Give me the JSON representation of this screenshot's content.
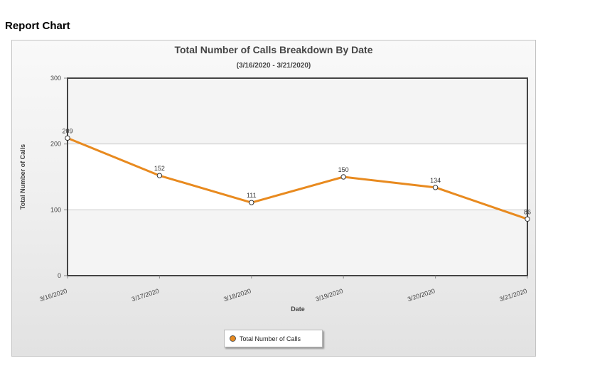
{
  "page": {
    "heading": "Report Chart"
  },
  "colors": {
    "line": "#e88a1f",
    "band": "#f4f4f4",
    "plot_bg": "#ffffff",
    "axis": "#444444",
    "grid": "#c8c8c8"
  },
  "chart_data": {
    "type": "line",
    "title": "Total Number of Calls Breakdown By Date",
    "subtitle": "(3/16/2020 - 3/21/2020)",
    "xlabel": "Date",
    "ylabel": "Total Number of Calls",
    "categories": [
      "3/16/2020",
      "3/17/2020",
      "3/18/2020",
      "3/19/2020",
      "3/20/2020",
      "3/21/2020"
    ],
    "series": [
      {
        "name": "Total Number of Calls",
        "values": [
          209,
          152,
          111,
          150,
          134,
          86
        ]
      }
    ],
    "ylim": [
      0,
      300
    ],
    "yticks": [
      0,
      100,
      200,
      300
    ],
    "grid": true,
    "data_labels": true,
    "legend_position": "bottom-center"
  }
}
